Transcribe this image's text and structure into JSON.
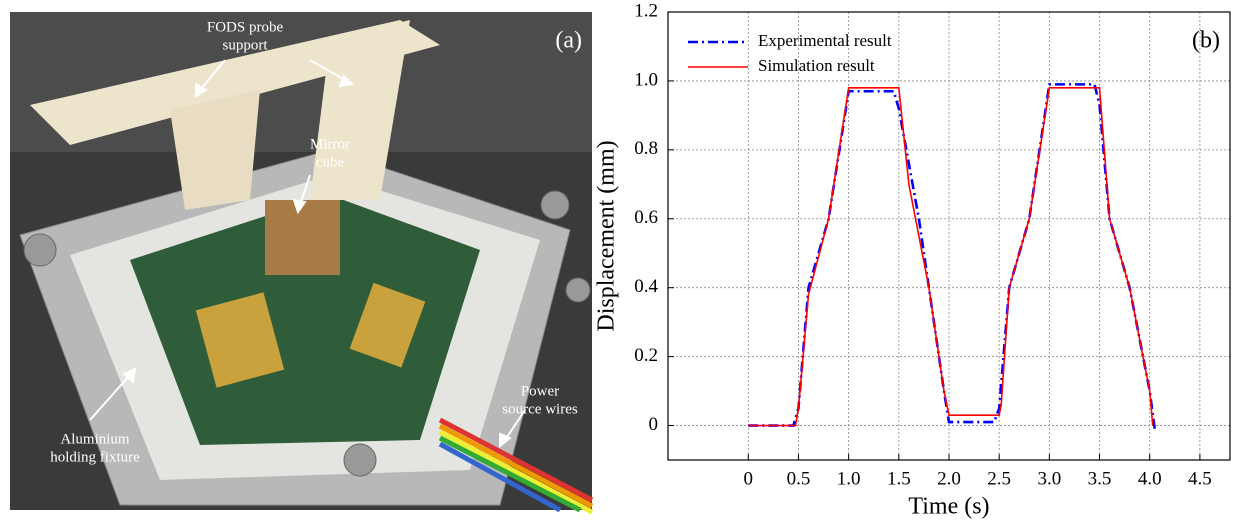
{
  "photo": {
    "panel_label": "(a)",
    "annotations": [
      {
        "lines": [
          "FODS probe",
          "support"
        ]
      },
      {
        "lines": [
          "Mirror",
          "cube"
        ]
      },
      {
        "lines": [
          "Power",
          "source wires"
        ]
      },
      {
        "lines": [
          "Aluminium",
          "holding fixture"
        ]
      }
    ]
  },
  "chart_data": {
    "type": "line",
    "panel_label": "(b)",
    "x_label": "Time (s)",
    "y_label": "Displacement (mm)",
    "xlim": [
      -0.8,
      4.8
    ],
    "ylim": [
      -0.1,
      1.2
    ],
    "xticks": [
      0,
      0.5,
      {
        "value": 1,
        "label": "1.0"
      },
      1.5,
      {
        "value": 2,
        "label": "2.0"
      },
      2.5,
      {
        "value": 3,
        "label": "3.0"
      },
      3.5,
      {
        "value": 4,
        "label": "4.0"
      },
      4.5
    ],
    "yticks": [
      0,
      0.2,
      0.4,
      0.6,
      0.8,
      {
        "value": 1,
        "label": "1.0"
      },
      1.2
    ],
    "grid": true,
    "legend": "upper-left",
    "series": [
      {
        "name": "Experimental result",
        "color": "#0000ff",
        "dash": "dashdot",
        "x": [
          0,
          0.45,
          0.5,
          0.6,
          0.8,
          1.0,
          1.45,
          1.5,
          1.7,
          1.8,
          1.95,
          2.0,
          2.45,
          2.5,
          2.6,
          2.8,
          3.0,
          3.45,
          3.5,
          3.6,
          3.8,
          4.0,
          4.05
        ],
        "values": [
          0,
          0,
          0.05,
          0.4,
          0.6,
          0.97,
          0.97,
          0.92,
          0.6,
          0.4,
          0.1,
          0.01,
          0.01,
          0.05,
          0.4,
          0.6,
          0.99,
          0.99,
          0.93,
          0.6,
          0.4,
          0.1,
          -0.01
        ]
      },
      {
        "name": "Simulation result",
        "color": "#ff0000",
        "dash": "solid",
        "x": [
          0,
          0.47,
          0.5,
          0.6,
          0.8,
          1.0,
          1.5,
          1.6,
          1.8,
          1.95,
          2.0,
          2.5,
          2.52,
          2.6,
          2.8,
          3.0,
          3.5,
          3.6,
          3.8,
          4.0,
          4.03
        ],
        "values": [
          0,
          0,
          0.05,
          0.38,
          0.6,
          0.98,
          0.98,
          0.7,
          0.4,
          0.1,
          0.03,
          0.03,
          0.06,
          0.4,
          0.6,
          0.98,
          0.98,
          0.6,
          0.4,
          0.1,
          0
        ]
      }
    ]
  }
}
